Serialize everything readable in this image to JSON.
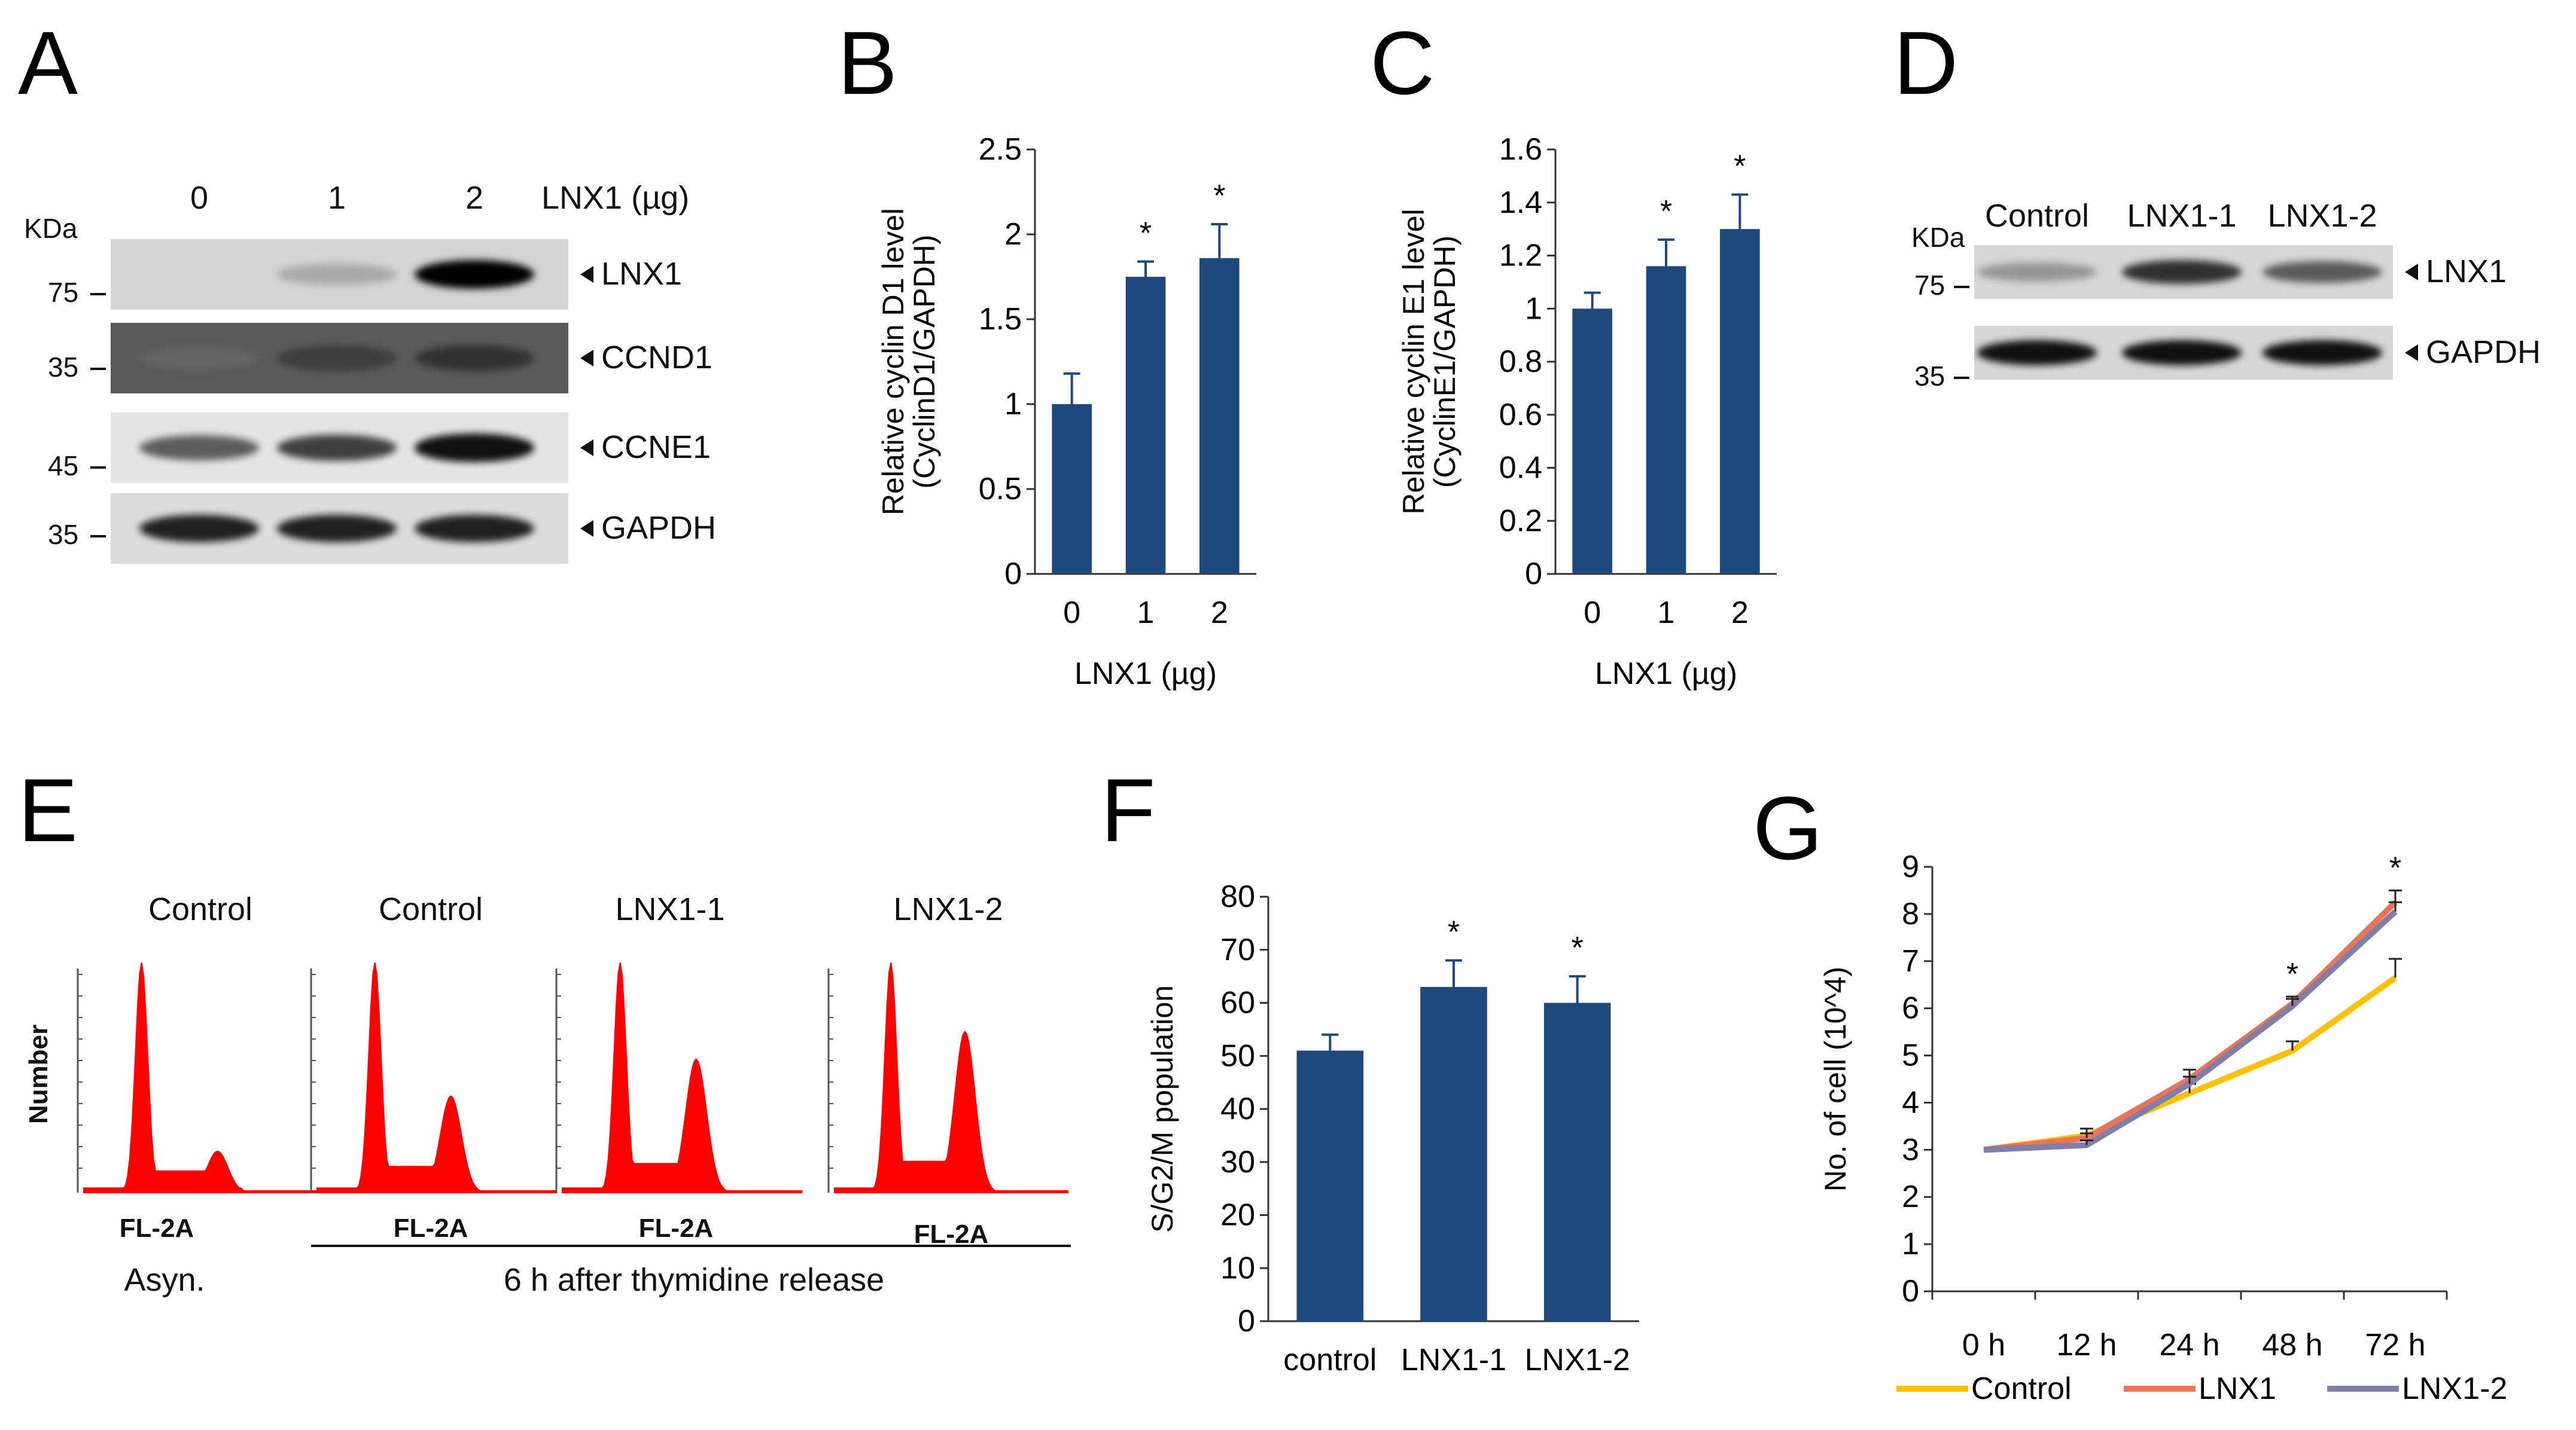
{
  "panels": {
    "A": "A",
    "B": "B",
    "C": "C",
    "D": "D",
    "E": "E",
    "F": "F",
    "G": "G"
  },
  "colors": {
    "bar": "#1f497d",
    "control": "#ffc000",
    "lnx1": "#e8745a",
    "lnx1_2": "#8080a6",
    "hist": "#ff0000"
  },
  "panelA": {
    "kda": "KDa",
    "lanes": [
      "0",
      "1",
      "2"
    ],
    "lane_header": "LNX1 (µg)",
    "markers": [
      "75",
      "35",
      "45",
      "35"
    ],
    "proteins": [
      "LNX1",
      "CCND1",
      "CCNE1",
      "GAPDH"
    ],
    "blots": [
      {
        "bg": "#d4d4d4",
        "intensity": [
          0.0,
          0.35,
          1.0
        ]
      },
      {
        "bg": "#5a5a5a",
        "intensity": [
          0.55,
          0.75,
          0.8
        ]
      },
      {
        "bg": "#e4e4e4",
        "intensity": [
          0.7,
          0.8,
          0.95
        ]
      },
      {
        "bg": "#dcdcdc",
        "intensity": [
          0.9,
          0.9,
          0.9
        ]
      }
    ]
  },
  "panelD": {
    "kda": "KDa",
    "lanes": [
      "Control",
      "LNX1-1",
      "LNX1-2"
    ],
    "markers": [
      "75",
      "35"
    ],
    "proteins": [
      "LNX1",
      "GAPDH"
    ],
    "blots": [
      {
        "bg": "#d6d6d6",
        "intensity": [
          0.45,
          0.85,
          0.7
        ]
      },
      {
        "bg": "#d6d6d6",
        "intensity": [
          0.95,
          0.95,
          0.95
        ]
      }
    ]
  },
  "panelE": {
    "headers": [
      "Control",
      "Control",
      "LNX1-1",
      "LNX1-2"
    ],
    "ylabel": "Number",
    "xlabels": [
      "FL-2A",
      "FL-2A",
      "FL-2A",
      "FL-2A"
    ],
    "group_left": "Asyn.",
    "group_right": "6 h after thymidine release",
    "histograms": [
      {
        "g1": 1.0,
        "g2": 0.18
      },
      {
        "g1": 1.0,
        "g2": 0.42
      },
      {
        "g1": 1.0,
        "g2": 0.58
      },
      {
        "g1": 1.0,
        "g2": 0.7
      }
    ]
  },
  "chart_data": [
    {
      "type": "bar",
      "panel": "B",
      "categories": [
        "0",
        "1",
        "2"
      ],
      "values": [
        1.0,
        1.75,
        1.86
      ],
      "errors": [
        0.18,
        0.09,
        0.2
      ],
      "significance": [
        "",
        "*",
        "*"
      ],
      "xlabel": "LNX1 (µg)",
      "ylabel": "Relative cyclin D1 level\n(CyclinD1/GAPDH)",
      "ylim": [
        0,
        2.5
      ],
      "yticks": [
        "0",
        "0.5",
        "1",
        "1.5",
        "2",
        "2.5"
      ]
    },
    {
      "type": "bar",
      "panel": "C",
      "categories": [
        "0",
        "1",
        "2"
      ],
      "values": [
        1.0,
        1.16,
        1.3
      ],
      "errors": [
        0.06,
        0.1,
        0.13
      ],
      "significance": [
        "",
        "*",
        "*"
      ],
      "xlabel": "LNX1 (µg)",
      "ylabel": "Relative cyclin E1 level\n(CyclinE1/GAPDH)",
      "ylim": [
        0,
        1.6
      ],
      "yticks": [
        "0",
        "0.2",
        "0.4",
        "0.6",
        "0.8",
        "1",
        "1.2",
        "1.4",
        "1.6"
      ]
    },
    {
      "type": "bar",
      "panel": "F",
      "categories": [
        "control",
        "LNX1-1",
        "LNX1-2"
      ],
      "values": [
        51,
        63,
        60
      ],
      "errors": [
        3,
        5,
        5
      ],
      "significance": [
        "",
        "*",
        "*"
      ],
      "xlabel": "",
      "ylabel": "S/G2/M population",
      "ylim": [
        0,
        80
      ],
      "yticks": [
        "0",
        "10",
        "20",
        "30",
        "40",
        "50",
        "60",
        "70",
        "80"
      ]
    },
    {
      "type": "line",
      "panel": "G",
      "categories": [
        "0 h",
        "12 h",
        "24 h",
        "48 h",
        "72 h"
      ],
      "series": [
        {
          "name": "Control",
          "values": [
            3.0,
            3.3,
            4.2,
            5.1,
            6.65
          ],
          "errors": [
            0,
            0.15,
            0.2,
            0.2,
            0.4
          ]
        },
        {
          "name": "LNX1",
          "values": [
            3.0,
            3.25,
            4.5,
            6.1,
            8.25
          ],
          "errors": [
            0,
            0.1,
            0.2,
            0.15,
            0.25
          ]
        },
        {
          "name": "LNX1-2",
          "values": [
            3.0,
            3.1,
            4.4,
            6.05,
            8.05
          ],
          "errors": [
            0,
            0.1,
            0.15,
            0.15,
            0.2
          ]
        }
      ],
      "significance": [
        "",
        "",
        "",
        "*",
        "*"
      ],
      "xlabel": "",
      "ylabel": "No. of cell (10^4)",
      "ylim": [
        0,
        9
      ],
      "yticks": [
        "0",
        "1",
        "2",
        "3",
        "4",
        "5",
        "6",
        "7",
        "8",
        "9"
      ],
      "legend": "bottom"
    }
  ]
}
